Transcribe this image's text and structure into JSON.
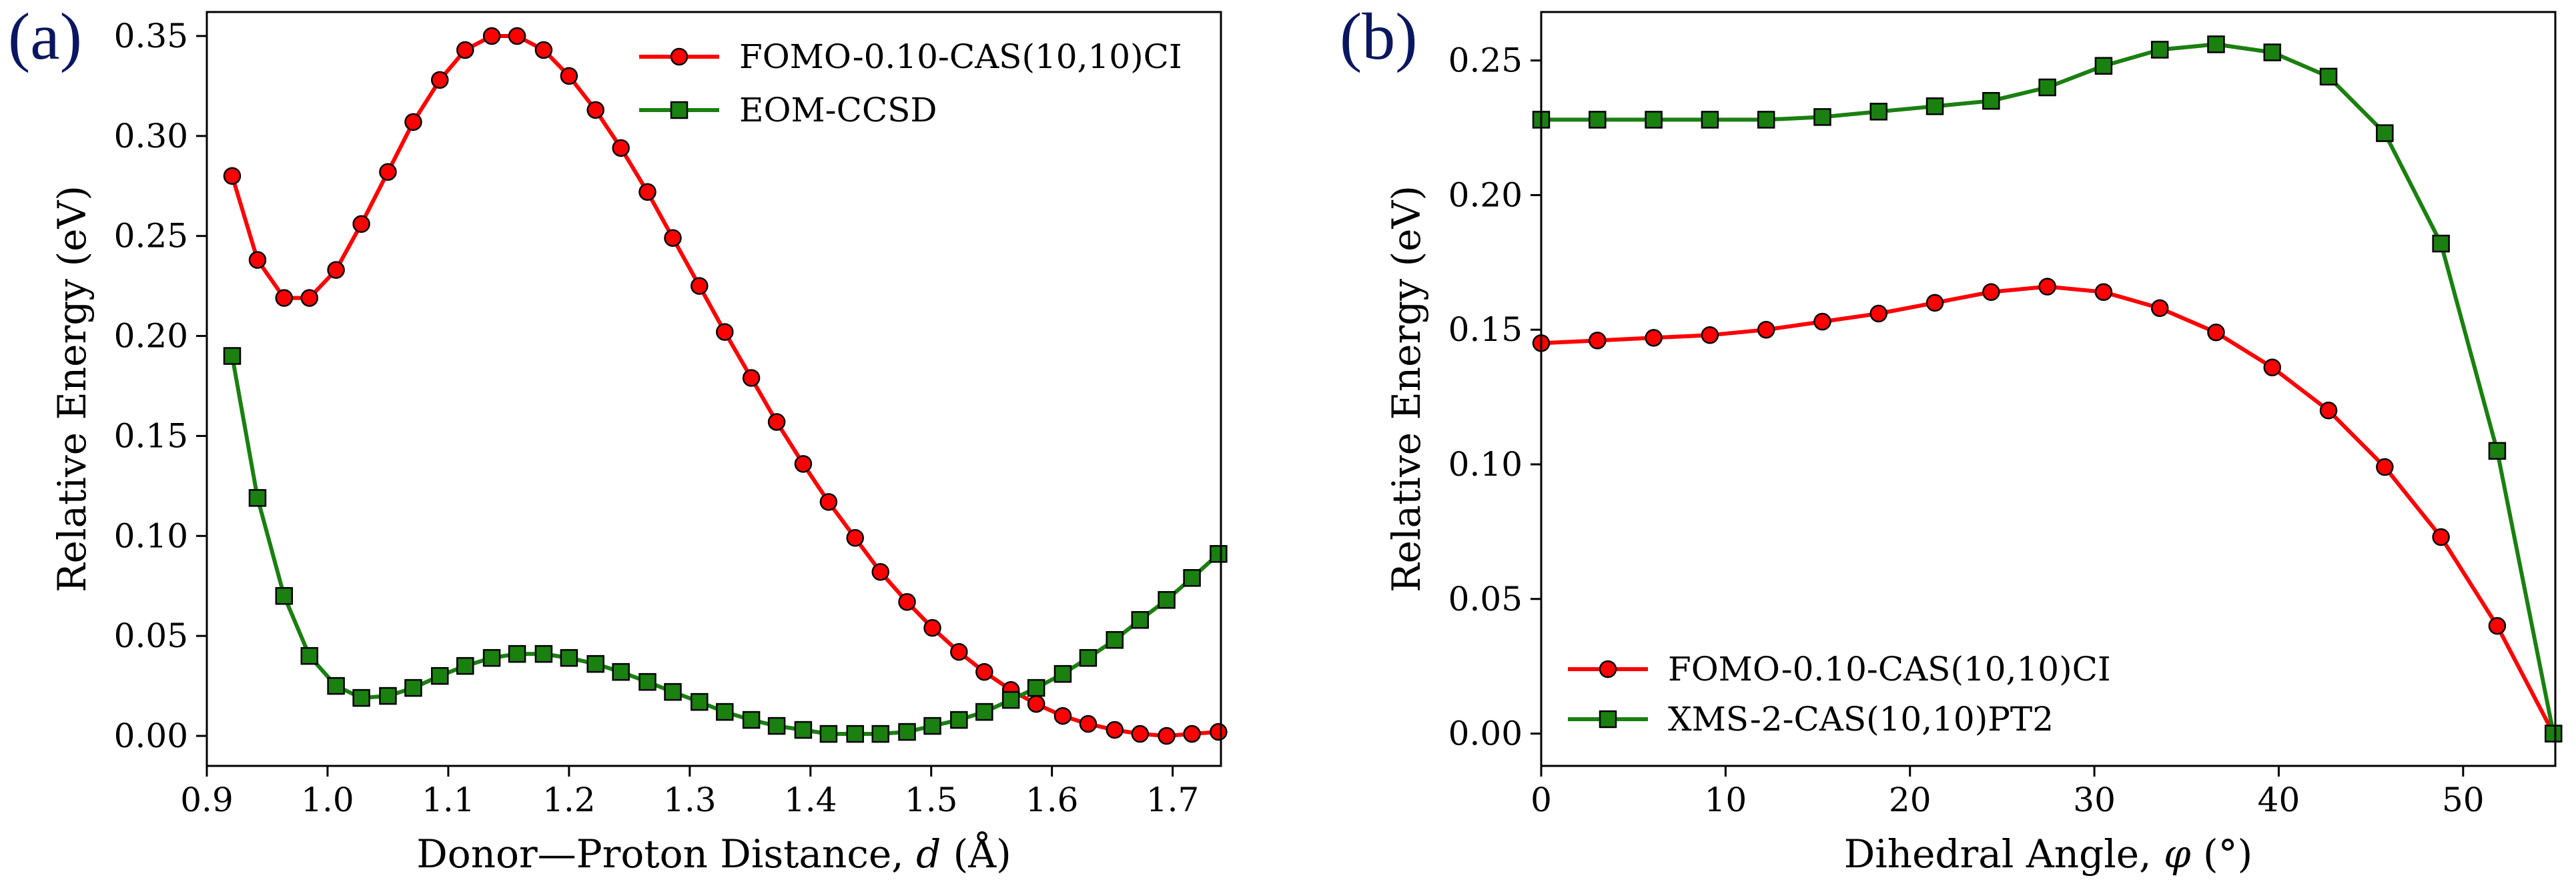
{
  "chart_data": [
    {
      "type": "line",
      "panel_label": "(a)",
      "xlabel": "Donor—Proton Distance, d (Å)",
      "xlabel_parts": {
        "prefix": "Donor—Proton Distance, ",
        "var": "d",
        "suffix": " (Å)"
      },
      "ylabel": "Relative Energy (eV)",
      "xlim": [
        0.9,
        1.74
      ],
      "ylim": [
        -0.015,
        0.362
      ],
      "xticks": [
        "0.9",
        "1.0",
        "1.1",
        "1.2",
        "1.3",
        "1.4",
        "1.5",
        "1.6",
        "1.7"
      ],
      "yticks": [
        "0.00",
        "0.05",
        "0.10",
        "0.15",
        "0.20",
        "0.25",
        "0.30",
        "0.35"
      ],
      "legend_position": "top-right",
      "series": [
        {
          "name": "FOMO-0.10-CAS(10,10)CI",
          "color": "#ff0000",
          "marker": "circle",
          "x": [
            0.921,
            0.942,
            0.964,
            0.985,
            1.007,
            1.028,
            1.05,
            1.071,
            1.093,
            1.114,
            1.136,
            1.157,
            1.179,
            1.2,
            1.222,
            1.243,
            1.265,
            1.286,
            1.308,
            1.329,
            1.351,
            1.372,
            1.394,
            1.415,
            1.437,
            1.458,
            1.48,
            1.501,
            1.523,
            1.544,
            1.566,
            1.587,
            1.609,
            1.63,
            1.652,
            1.673,
            1.695,
            1.716,
            1.738
          ],
          "y": [
            0.28,
            0.238,
            0.219,
            0.219,
            0.233,
            0.256,
            0.282,
            0.307,
            0.328,
            0.343,
            0.35,
            0.35,
            0.343,
            0.33,
            0.313,
            0.294,
            0.272,
            0.249,
            0.225,
            0.202,
            0.179,
            0.157,
            0.136,
            0.117,
            0.099,
            0.082,
            0.067,
            0.054,
            0.042,
            0.032,
            0.023,
            0.016,
            0.01,
            0.006,
            0.003,
            0.001,
            0.0,
            0.001,
            0.002
          ]
        },
        {
          "name": "EOM-CCSD",
          "color": "#1a8010",
          "marker": "square",
          "x": [
            0.921,
            0.942,
            0.964,
            0.985,
            1.007,
            1.028,
            1.05,
            1.071,
            1.093,
            1.114,
            1.136,
            1.157,
            1.179,
            1.2,
            1.222,
            1.243,
            1.265,
            1.286,
            1.308,
            1.329,
            1.351,
            1.372,
            1.394,
            1.415,
            1.437,
            1.458,
            1.48,
            1.501,
            1.523,
            1.544,
            1.566,
            1.587,
            1.609,
            1.63,
            1.652,
            1.673,
            1.695,
            1.716,
            1.738
          ],
          "y": [
            0.19,
            0.119,
            0.07,
            0.04,
            0.025,
            0.019,
            0.02,
            0.024,
            0.03,
            0.035,
            0.039,
            0.041,
            0.041,
            0.039,
            0.036,
            0.032,
            0.027,
            0.022,
            0.017,
            0.012,
            0.008,
            0.005,
            0.003,
            0.001,
            0.001,
            0.001,
            0.002,
            0.005,
            0.008,
            0.012,
            0.018,
            0.024,
            0.031,
            0.039,
            0.048,
            0.058,
            0.068,
            0.079,
            0.091
          ]
        }
      ]
    },
    {
      "type": "line",
      "panel_label": "(b)",
      "xlabel": "Dihedral Angle, φ (°)",
      "xlabel_parts": {
        "prefix": "Dihedral Angle, ",
        "var": "φ",
        "suffix": " (°)"
      },
      "ylabel": "Relative Energy (eV)",
      "xlim": [
        0,
        55
      ],
      "ylim": [
        -0.012,
        0.268
      ],
      "xticks": [
        "0",
        "10",
        "20",
        "30",
        "40",
        "50"
      ],
      "yticks": [
        "0.00",
        "0.05",
        "0.10",
        "0.15",
        "0.20",
        "0.25"
      ],
      "legend_position": "lower-left",
      "series": [
        {
          "name": "FOMO-0.10-CAS(10,10)CI",
          "color": "#ff0000",
          "marker": "circle",
          "x": [
            0,
            3.05,
            6.1,
            9.15,
            12.2,
            15.25,
            18.3,
            21.35,
            24.4,
            27.45,
            30.5,
            33.55,
            36.6,
            39.65,
            42.7,
            45.75,
            48.8,
            51.85,
            54.9
          ],
          "y": [
            0.145,
            0.146,
            0.147,
            0.148,
            0.15,
            0.153,
            0.156,
            0.16,
            0.164,
            0.166,
            0.164,
            0.158,
            0.149,
            0.136,
            0.12,
            0.099,
            0.073,
            0.04,
            0.0
          ]
        },
        {
          "name": "XMS-2-CAS(10,10)PT2",
          "color": "#1a8010",
          "marker": "square",
          "x": [
            0,
            3.05,
            6.1,
            9.15,
            12.2,
            15.25,
            18.3,
            21.35,
            24.4,
            27.45,
            30.5,
            33.55,
            36.6,
            39.65,
            42.7,
            45.75,
            48.8,
            51.85,
            54.9
          ],
          "y": [
            0.228,
            0.228,
            0.228,
            0.228,
            0.228,
            0.229,
            0.231,
            0.233,
            0.235,
            0.24,
            0.248,
            0.254,
            0.256,
            0.253,
            0.244,
            0.223,
            0.182,
            0.105,
            0.0
          ]
        }
      ]
    }
  ]
}
